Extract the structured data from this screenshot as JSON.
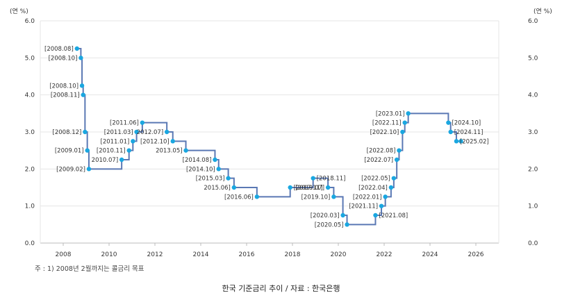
{
  "chart_data": {
    "type": "line",
    "step": true,
    "unit_left": "(연 %)",
    "unit_right": "(연 %)",
    "ylim": [
      0,
      6
    ],
    "yticks": [
      "0.0",
      "1.0",
      "2.0",
      "3.0",
      "4.0",
      "5.0",
      "6.0"
    ],
    "xlim": [
      2007,
      2027
    ],
    "xticks": [
      "2008",
      "2010",
      "2012",
      "2014",
      "2016",
      "2018",
      "2020",
      "2022",
      "2024",
      "2026"
    ],
    "grid": true,
    "series": [
      {
        "color": "#5a78b4",
        "marker_color": "#1aa7e0",
        "points": [
          {
            "label": "[2008.08]",
            "x": 2008.6,
            "y": 5.25
          },
          {
            "label": "[2008.10]",
            "x": 2008.77,
            "y": 5.0
          },
          {
            "label": "[2008.10]",
            "x": 2008.82,
            "y": 4.25
          },
          {
            "label": "[2008.11]",
            "x": 2008.87,
            "y": 4.0
          },
          {
            "label": "[2008.12]",
            "x": 2008.95,
            "y": 3.0
          },
          {
            "label": "[2009.01]",
            "x": 2009.05,
            "y": 2.5
          },
          {
            "label": "[2009.02]",
            "x": 2009.12,
            "y": 2.0
          },
          {
            "label": "2010.07]",
            "x": 2010.55,
            "y": 2.25
          },
          {
            "label": "[2010.11]",
            "x": 2010.87,
            "y": 2.5
          },
          {
            "label": "[2011.01]",
            "x": 2011.04,
            "y": 2.75
          },
          {
            "label": "[2011.03]",
            "x": 2011.2,
            "y": 3.0
          },
          {
            "label": "[2011.06]",
            "x": 2011.45,
            "y": 3.25
          },
          {
            "label": "2012.07]",
            "x": 2012.52,
            "y": 3.0
          },
          {
            "label": "[2012.10]",
            "x": 2012.78,
            "y": 2.75
          },
          {
            "label": "2013.05]",
            "x": 2013.35,
            "y": 2.5
          },
          {
            "label": "[2014.08]",
            "x": 2014.62,
            "y": 2.25
          },
          {
            "label": "[2014.10]",
            "x": 2014.78,
            "y": 2.0
          },
          {
            "label": "[2015.03]",
            "x": 2015.2,
            "y": 1.75
          },
          {
            "label": "2015.06]",
            "x": 2015.45,
            "y": 1.5
          },
          {
            "label": "[2016.06]",
            "x": 2016.45,
            "y": 1.25
          },
          {
            "label": "[2017.11]",
            "x": 2017.9,
            "y": 1.5
          },
          {
            "label": "[2018.11]",
            "x": 2018.9,
            "y": 1.75
          },
          {
            "label": "[2019.07]",
            "x": 2019.55,
            "y": 1.5
          },
          {
            "label": "[2019.10]",
            "x": 2019.8,
            "y": 1.25
          },
          {
            "label": "[2020.03]",
            "x": 2020.2,
            "y": 0.75
          },
          {
            "label": "[2020.05]",
            "x": 2020.38,
            "y": 0.5
          },
          {
            "label": "[2021.08]",
            "x": 2021.62,
            "y": 0.75
          },
          {
            "label": "[2021.11]",
            "x": 2021.88,
            "y": 1.0
          },
          {
            "label": "[2022.01]",
            "x": 2022.05,
            "y": 1.25
          },
          {
            "label": "[2022.04]",
            "x": 2022.3,
            "y": 1.5
          },
          {
            "label": "[2022.05]",
            "x": 2022.42,
            "y": 1.75
          },
          {
            "label": "[2022.07]",
            "x": 2022.55,
            "y": 2.25
          },
          {
            "label": "[2022.08]",
            "x": 2022.65,
            "y": 2.5
          },
          {
            "label": "[2022.10]",
            "x": 2022.8,
            "y": 3.0
          },
          {
            "label": "[2022.11]",
            "x": 2022.9,
            "y": 3.25
          },
          {
            "label": "[2023.01]",
            "x": 2023.05,
            "y": 3.5
          },
          {
            "label": "[2024.10]",
            "x": 2024.8,
            "y": 3.25
          },
          {
            "label": "[2024.11]",
            "x": 2024.9,
            "y": 3.0
          },
          {
            "label": "[2025.02]",
            "x": 2025.15,
            "y": 2.75
          },
          {
            "label": "",
            "x": 2025.35,
            "y": 2.75
          }
        ]
      }
    ]
  },
  "note": "주 : 1) 2008년 2월까지는 콜금리 목표",
  "caption": "한국 기준금리 추이 / 자료 : 한국은행"
}
